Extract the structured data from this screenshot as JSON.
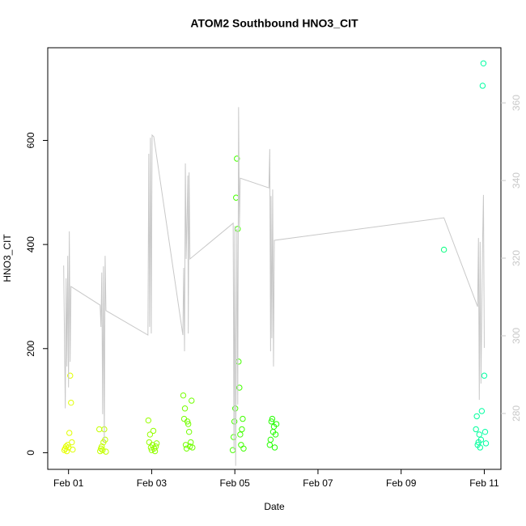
{
  "chart_data": {
    "type": "scatter",
    "title": "ATOM2 Southbound HNO3_CIT",
    "x_label": "Date",
    "y_label": "HNO3_CIT",
    "xlim": [
      -0.5,
      10.4
    ],
    "xticks": [
      {
        "value": 0,
        "label": "Feb 01"
      },
      {
        "value": 2,
        "label": "Feb 03"
      },
      {
        "value": 4,
        "label": "Feb 05"
      },
      {
        "value": 6,
        "label": "Feb 07"
      },
      {
        "value": 8,
        "label": "Feb 09"
      },
      {
        "value": 10,
        "label": "Feb 11"
      }
    ],
    "ylim": [
      -32,
      778
    ],
    "yticks": [
      0,
      200,
      400,
      600
    ],
    "y2lim": [
      265.6,
      374.2
    ],
    "y2ticks": [
      280,
      300,
      320,
      340,
      360
    ],
    "point_hue_range": [
      62,
      162
    ],
    "series": [
      {
        "name": "HNO3_CIT",
        "type": "scatter",
        "x": [
          -0.1,
          -0.08,
          -0.06,
          -0.04,
          -0.02,
          0.0,
          0.02,
          0.04,
          0.06,
          0.08,
          0.1,
          0.74,
          0.76,
          0.78,
          0.8,
          0.82,
          0.84,
          0.86,
          0.88,
          0.9,
          1.92,
          1.94,
          1.96,
          1.98,
          2.0,
          2.02,
          2.04,
          2.06,
          2.08,
          2.1,
          2.12,
          2.76,
          2.78,
          2.8,
          2.82,
          2.84,
          2.86,
          2.88,
          2.9,
          2.92,
          2.94,
          2.96,
          2.98,
          3.95,
          3.97,
          3.99,
          4.01,
          4.03,
          4.05,
          4.07,
          4.09,
          4.11,
          4.13,
          4.15,
          4.17,
          4.19,
          4.21,
          4.84,
          4.86,
          4.88,
          4.9,
          4.92,
          4.94,
          4.96,
          4.98,
          5.0,
          9.03,
          9.8,
          9.82,
          9.84,
          9.86,
          9.88,
          9.9,
          9.92,
          9.94,
          9.96,
          9.98,
          10.0,
          10.02,
          10.04
        ],
        "values": [
          5,
          8,
          12,
          3,
          15,
          10,
          38,
          148,
          96,
          20,
          6,
          45,
          3,
          8,
          12,
          5,
          20,
          45,
          25,
          2,
          62,
          20,
          35,
          10,
          5,
          15,
          42,
          8,
          3,
          12,
          18,
          110,
          65,
          85,
          15,
          8,
          60,
          55,
          40,
          12,
          20,
          100,
          10,
          5,
          30,
          60,
          85,
          490,
          565,
          430,
          175,
          125,
          35,
          15,
          45,
          65,
          8,
          15,
          25,
          60,
          65,
          40,
          50,
          10,
          35,
          55,
          390,
          45,
          70,
          15,
          20,
          35,
          10,
          25,
          80,
          705,
          748,
          148,
          40,
          18
        ]
      },
      {
        "name": "secondary",
        "type": "line",
        "axis": "y2",
        "color": "#c8c8c8",
        "x": [
          -0.117,
          -0.078,
          -0.058,
          -0.039,
          -0.019,
          0.0,
          0.019,
          0.039,
          0.058,
          0.76,
          0.78,
          0.8,
          0.82,
          0.84,
          0.86,
          0.88,
          0.9,
          1.91,
          1.93,
          1.95,
          1.97,
          1.99,
          2.01,
          2.05,
          2.75,
          2.77,
          2.79,
          2.81,
          2.83,
          2.87,
          2.88,
          2.9,
          2.92,
          3.96,
          3.98,
          4.0,
          4.02,
          4.05,
          4.07,
          4.09,
          4.11,
          4.13,
          4.82,
          4.84,
          4.86,
          4.87,
          4.89,
          4.91,
          4.93,
          4.95,
          9.03,
          9.84,
          9.86,
          9.88,
          9.9,
          9.92,
          9.96,
          9.98,
          10.0
        ],
        "values": [
          318.1,
          281.3,
          314.8,
          292.1,
          320.6,
          286.7,
          326.9,
          293.3,
          312.7,
          307.9,
          302.3,
          316.3,
          279.8,
          317.9,
          272.3,
          320.6,
          306.5,
          300.2,
          346.9,
          302.3,
          351.0,
          300.6,
          351.7,
          351.3,
          300.2,
          317.5,
          296.0,
          344.4,
          319.8,
          341.3,
          300.6,
          342.1,
          319.8,
          329.0,
          270.6,
          328.3,
          266.5,
          327.5,
          282.3,
          358.9,
          327.9,
          340.6,
          338.1,
          348.1,
          296.0,
          336.0,
          299.4,
          337.7,
          292.1,
          324.6,
          330.4,
          307.5,
          325.2,
          283.5,
          324.2,
          287.7,
          324.6,
          336.3,
          296.9
        ]
      }
    ]
  }
}
